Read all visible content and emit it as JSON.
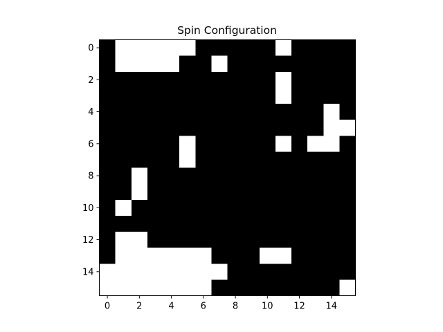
{
  "chart_data": {
    "type": "heatmap",
    "title": "Spin Configuration",
    "xlabel": "",
    "ylabel": "",
    "colormap": {
      "-1": "#000000",
      "1": "#ffffff"
    },
    "x_ticks": [
      0,
      2,
      4,
      6,
      8,
      10,
      12,
      14
    ],
    "y_ticks": [
      0,
      2,
      4,
      6,
      8,
      10,
      12,
      14
    ],
    "xlim": [
      -0.5,
      15.5
    ],
    "ylim": [
      15.5,
      -0.5
    ],
    "rows": 16,
    "cols": 16,
    "grid": [
      [
        -1,
        1,
        1,
        1,
        1,
        1,
        -1,
        -1,
        -1,
        -1,
        -1,
        1,
        -1,
        -1,
        -1,
        -1
      ],
      [
        -1,
        1,
        1,
        1,
        1,
        -1,
        -1,
        1,
        -1,
        -1,
        -1,
        -1,
        -1,
        -1,
        -1,
        -1
      ],
      [
        -1,
        -1,
        -1,
        -1,
        -1,
        -1,
        -1,
        -1,
        -1,
        -1,
        -1,
        1,
        -1,
        -1,
        -1,
        -1
      ],
      [
        -1,
        -1,
        -1,
        -1,
        -1,
        -1,
        -1,
        -1,
        -1,
        -1,
        -1,
        1,
        -1,
        -1,
        -1,
        -1
      ],
      [
        -1,
        -1,
        -1,
        -1,
        -1,
        -1,
        -1,
        -1,
        -1,
        -1,
        -1,
        -1,
        -1,
        -1,
        1,
        -1
      ],
      [
        -1,
        -1,
        -1,
        -1,
        -1,
        -1,
        -1,
        -1,
        -1,
        -1,
        -1,
        -1,
        -1,
        -1,
        1,
        1
      ],
      [
        -1,
        -1,
        -1,
        -1,
        -1,
        1,
        -1,
        -1,
        -1,
        -1,
        -1,
        1,
        -1,
        1,
        1,
        -1
      ],
      [
        -1,
        -1,
        -1,
        -1,
        -1,
        1,
        -1,
        -1,
        -1,
        -1,
        -1,
        -1,
        -1,
        -1,
        -1,
        -1
      ],
      [
        -1,
        -1,
        1,
        -1,
        -1,
        -1,
        -1,
        -1,
        -1,
        -1,
        -1,
        -1,
        -1,
        -1,
        -1,
        -1
      ],
      [
        -1,
        -1,
        1,
        -1,
        -1,
        -1,
        -1,
        -1,
        -1,
        -1,
        -1,
        -1,
        -1,
        -1,
        -1,
        -1
      ],
      [
        -1,
        1,
        -1,
        -1,
        -1,
        -1,
        -1,
        -1,
        -1,
        -1,
        -1,
        -1,
        -1,
        -1,
        -1,
        -1
      ],
      [
        -1,
        -1,
        -1,
        -1,
        -1,
        -1,
        -1,
        -1,
        -1,
        -1,
        -1,
        -1,
        -1,
        -1,
        -1,
        -1
      ],
      [
        -1,
        1,
        1,
        -1,
        -1,
        -1,
        -1,
        -1,
        -1,
        -1,
        -1,
        -1,
        -1,
        -1,
        -1,
        -1
      ],
      [
        -1,
        1,
        1,
        1,
        1,
        1,
        1,
        -1,
        -1,
        -1,
        1,
        1,
        -1,
        -1,
        -1,
        -1
      ],
      [
        1,
        1,
        1,
        1,
        1,
        1,
        1,
        1,
        -1,
        -1,
        -1,
        -1,
        -1,
        -1,
        -1,
        -1
      ],
      [
        1,
        1,
        1,
        1,
        1,
        1,
        1,
        -1,
        -1,
        -1,
        -1,
        -1,
        -1,
        -1,
        -1,
        1
      ]
    ]
  }
}
